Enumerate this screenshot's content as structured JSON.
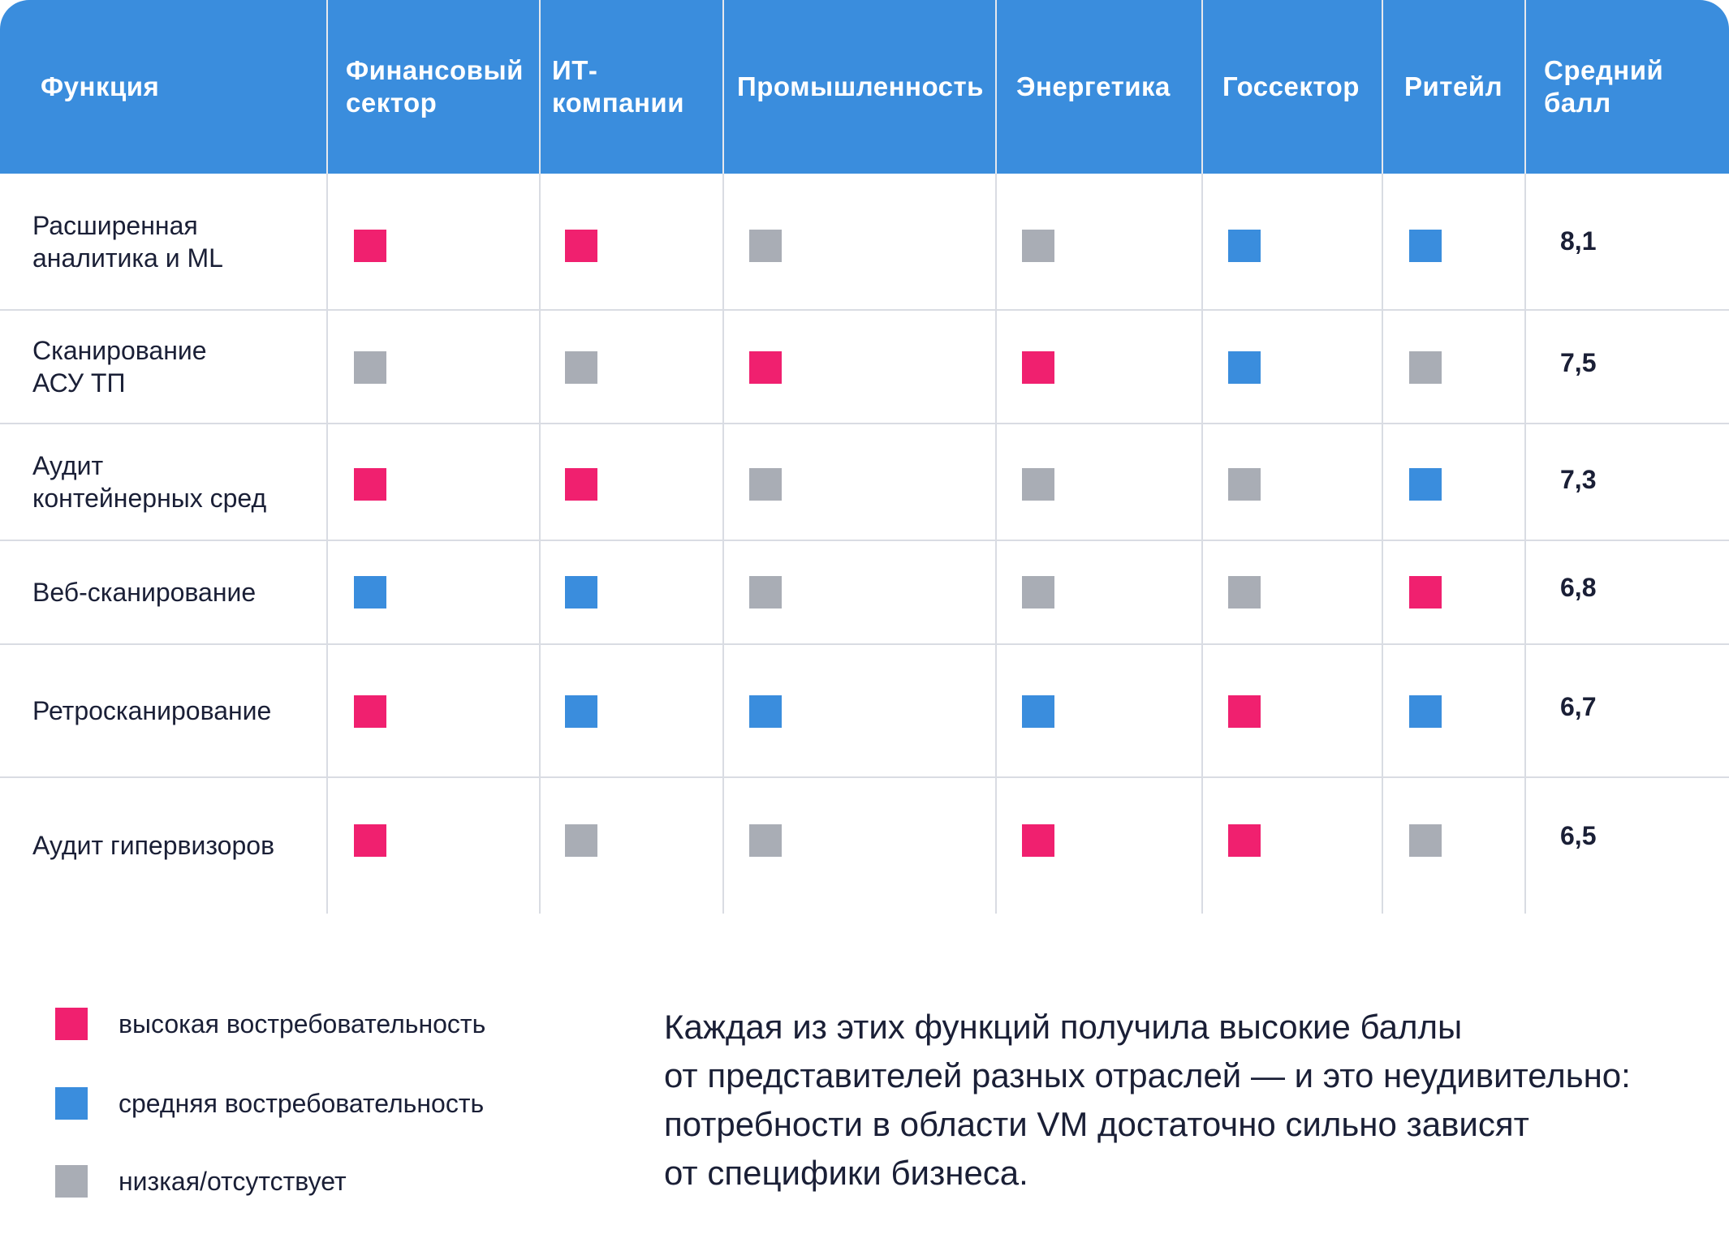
{
  "chart_data": {
    "type": "table",
    "columns": [
      "Функция",
      "Финансовый сектор",
      "ИТ-компании",
      "Промышленность",
      "Энергетика",
      "Госсектор",
      "Ритейл",
      "Средний балл"
    ],
    "column_lines": {
      "function": [
        "Функция"
      ],
      "fin": [
        "Финансовый",
        "сектор"
      ],
      "it": [
        "ИТ-",
        "компании"
      ],
      "prom": [
        "Промышленность"
      ],
      "energy": [
        "Энергетика"
      ],
      "gov": [
        "Госсектор"
      ],
      "retail": [
        "Ритейл"
      ],
      "avg": [
        "Средний",
        "балл"
      ]
    },
    "rows": [
      {
        "label": "Расширенная\nаналитика и ML",
        "levels": [
          "high",
          "high",
          "low",
          "low",
          "medium",
          "medium"
        ],
        "score": "8,1"
      },
      {
        "label": "Сканирование\nАСУ ТП",
        "levels": [
          "low",
          "low",
          "high",
          "high",
          "medium",
          "low"
        ],
        "score": "7,5"
      },
      {
        "label": "Аудит\nконтейнерных сред",
        "levels": [
          "high",
          "high",
          "low",
          "low",
          "low",
          "medium"
        ],
        "score": "7,3"
      },
      {
        "label": "Веб-сканирование",
        "levels": [
          "medium",
          "medium",
          "low",
          "low",
          "low",
          "high"
        ],
        "score": "6,8"
      },
      {
        "label": "Ретросканирование",
        "levels": [
          "high",
          "medium",
          "medium",
          "medium",
          "high",
          "medium"
        ],
        "score": "6,7"
      },
      {
        "label": "Аудит гипервизоров",
        "levels": [
          "high",
          "low",
          "low",
          "high",
          "high",
          "low"
        ],
        "score": "6,5"
      }
    ]
  },
  "colors": {
    "header_bg": "#3a8ddd",
    "high": "#f0206f",
    "medium": "#3a8ddd",
    "low": "#a9adb5",
    "text": "#1a1f36"
  },
  "legend": [
    {
      "level": "high",
      "label": "высокая востребовательность"
    },
    {
      "level": "medium",
      "label": "средняя востребовательность"
    },
    {
      "level": "low",
      "label": "низкая/отсутствует"
    }
  ],
  "note": {
    "lines": [
      "Каждая из этих функций получила высокие баллы",
      "от представителей разных отраслей — и это неудивительно:",
      "потребности в области VM достаточно сильно зависят",
      "от специфики бизнеса."
    ]
  }
}
